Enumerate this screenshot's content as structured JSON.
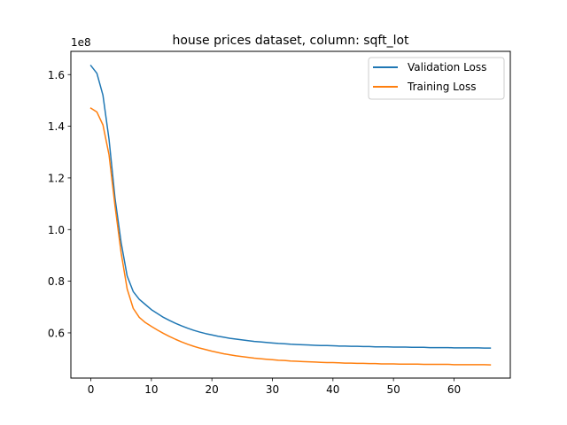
{
  "chart_data": {
    "type": "line",
    "title": "house prices dataset, column: sqft_lot",
    "xlabel": "",
    "ylabel": "",
    "y_offset_text": "1e8",
    "xlim": [
      -3.3,
      69.3
    ],
    "ylim": [
      0.425,
      1.69
    ],
    "xticks": [
      0,
      10,
      20,
      30,
      40,
      50,
      60
    ],
    "xtick_labels": [
      "0",
      "10",
      "20",
      "30",
      "40",
      "50",
      "60"
    ],
    "yticks": [
      0.6,
      0.8,
      1.0,
      1.2,
      1.4,
      1.6
    ],
    "ytick_labels": [
      "0.6",
      "0.8",
      "1.0",
      "1.2",
      "1.4",
      "1.6"
    ],
    "grid": false,
    "legend_position": "upper right",
    "series": [
      {
        "name": "Validation Loss",
        "color": "#1f77b4",
        "x": [
          0,
          1,
          2,
          3,
          4,
          5,
          6,
          7,
          8,
          9,
          10,
          11,
          12,
          13,
          14,
          15,
          16,
          17,
          18,
          19,
          20,
          21,
          22,
          23,
          24,
          25,
          26,
          27,
          28,
          29,
          30,
          31,
          32,
          33,
          34,
          35,
          36,
          37,
          38,
          39,
          40,
          41,
          42,
          43,
          44,
          45,
          46,
          47,
          48,
          49,
          50,
          51,
          52,
          53,
          54,
          55,
          56,
          57,
          58,
          59,
          60,
          61,
          62,
          63,
          64,
          65,
          66
        ],
        "values": [
          1.635,
          1.605,
          1.52,
          1.35,
          1.12,
          0.95,
          0.82,
          0.76,
          0.73,
          0.71,
          0.69,
          0.675,
          0.66,
          0.648,
          0.637,
          0.627,
          0.618,
          0.61,
          0.603,
          0.597,
          0.592,
          0.587,
          0.583,
          0.579,
          0.576,
          0.573,
          0.57,
          0.567,
          0.565,
          0.563,
          0.561,
          0.559,
          0.558,
          0.556,
          0.555,
          0.554,
          0.553,
          0.552,
          0.551,
          0.551,
          0.55,
          0.549,
          0.549,
          0.548,
          0.548,
          0.547,
          0.547,
          0.546,
          0.546,
          0.546,
          0.545,
          0.545,
          0.545,
          0.544,
          0.544,
          0.544,
          0.543,
          0.543,
          0.543,
          0.543,
          0.542,
          0.542,
          0.542,
          0.542,
          0.542,
          0.541,
          0.541
        ]
      },
      {
        "name": "Training Loss",
        "color": "#ff7f0e",
        "x": [
          0,
          1,
          2,
          3,
          4,
          5,
          6,
          7,
          8,
          9,
          10,
          11,
          12,
          13,
          14,
          15,
          16,
          17,
          18,
          19,
          20,
          21,
          22,
          23,
          24,
          25,
          26,
          27,
          28,
          29,
          30,
          31,
          32,
          33,
          34,
          35,
          36,
          37,
          38,
          39,
          40,
          41,
          42,
          43,
          44,
          45,
          46,
          47,
          48,
          49,
          50,
          51,
          52,
          53,
          54,
          55,
          56,
          57,
          58,
          59,
          60,
          61,
          62,
          63,
          64,
          65,
          66
        ],
        "values": [
          1.47,
          1.455,
          1.405,
          1.29,
          1.09,
          0.91,
          0.77,
          0.695,
          0.66,
          0.64,
          0.625,
          0.611,
          0.598,
          0.586,
          0.575,
          0.565,
          0.556,
          0.548,
          0.541,
          0.535,
          0.529,
          0.524,
          0.519,
          0.515,
          0.511,
          0.508,
          0.505,
          0.502,
          0.5,
          0.498,
          0.496,
          0.494,
          0.493,
          0.491,
          0.49,
          0.489,
          0.488,
          0.487,
          0.486,
          0.485,
          0.485,
          0.484,
          0.483,
          0.483,
          0.482,
          0.482,
          0.481,
          0.481,
          0.48,
          0.48,
          0.48,
          0.479,
          0.479,
          0.479,
          0.479,
          0.478,
          0.478,
          0.478,
          0.478,
          0.478,
          0.477,
          0.477,
          0.477,
          0.477,
          0.477,
          0.477,
          0.476
        ]
      }
    ]
  }
}
